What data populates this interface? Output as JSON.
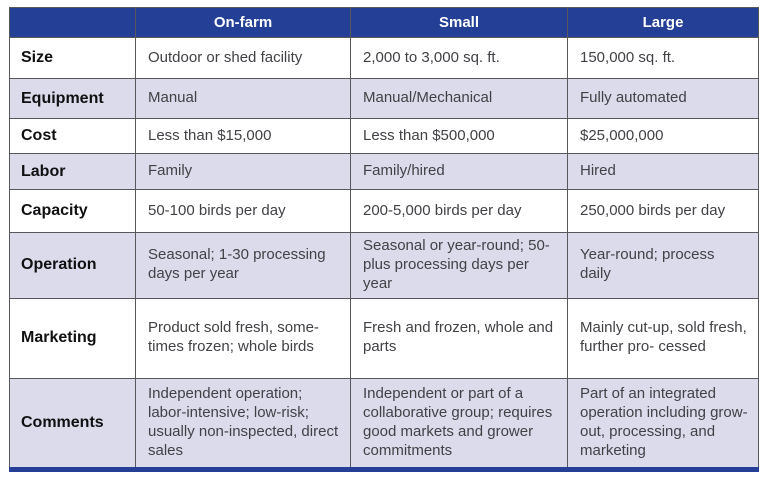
{
  "colors": {
    "header_bg": "#243f96",
    "alt_row_bg": "#dbdbeb",
    "plain_row_bg": "#ffffff",
    "grid_border": "#57575c",
    "bottom_bar": "#243f96",
    "header_text": "#ffffff",
    "body_text": "#414146",
    "label_text": "#101012"
  },
  "table": {
    "headers": [
      "",
      "On-farm",
      "Small",
      "Large"
    ],
    "rows": [
      {
        "label": "Size",
        "cells": [
          "Outdoor or shed facility",
          "2,000 to 3,000 sq. ft.",
          "150,000 sq. ft."
        ]
      },
      {
        "label": "Equipment",
        "cells": [
          "Manual",
          "Manual/Mechanical",
          "Fully automated"
        ]
      },
      {
        "label": "Cost",
        "cells": [
          "Less than $15,000",
          "Less than $500,000",
          "$25,000,000"
        ]
      },
      {
        "label": "Labor",
        "cells": [
          "Family",
          "Family/hired",
          "Hired"
        ]
      },
      {
        "label": "Capacity",
        "cells": [
          "50-100 birds per day",
          "200-5,000 birds per day",
          "250,000 birds per day"
        ]
      },
      {
        "label": "Operation",
        "cells": [
          "Seasonal; 1-30 processing days per year",
          "Seasonal or year-round; 50-plus processing days per year",
          "Year-round; process daily"
        ]
      },
      {
        "label": "Marketing",
        "cells": [
          "Product sold fresh, some-times frozen; whole birds",
          "Fresh and frozen, whole and parts",
          "Mainly cut-up, sold fresh, further pro- cessed"
        ]
      },
      {
        "label": "Comments",
        "cells": [
          "Independent operation; labor-intensive; low-risk; usually non-inspected, direct sales",
          "Independent or part of a collaborative group; requires good markets and grower commitments",
          "Part of an integrated operation including grow-out, processing, and marketing"
        ]
      }
    ]
  },
  "chart_data": {
    "type": "table",
    "title": "",
    "columns": [
      "",
      "On-farm",
      "Small",
      "Large"
    ],
    "rows": [
      [
        "Size",
        "Outdoor or shed facility",
        "2,000 to 3,000 sq. ft.",
        "150,000 sq. ft."
      ],
      [
        "Equipment",
        "Manual",
        "Manual/Mechanical",
        "Fully automated"
      ],
      [
        "Cost",
        "Less than $15,000",
        "Less than $500,000",
        "$25,000,000"
      ],
      [
        "Labor",
        "Family",
        "Family/hired",
        "Hired"
      ],
      [
        "Capacity",
        "50-100 birds per day",
        "200-5,000 birds per day",
        "250,000 birds per day"
      ],
      [
        "Operation",
        "Seasonal; 1-30 processing days per year",
        "Seasonal or year-round; 50-plus processing days per year",
        "Year-round; process daily"
      ],
      [
        "Marketing",
        "Product sold fresh, some-times frozen; whole birds",
        "Fresh and frozen, whole and parts",
        "Mainly cut-up, sold fresh, further pro- cessed"
      ],
      [
        "Comments",
        "Independent operation; labor-intensive; low-risk; usually non-inspected, direct sales",
        "Independent or part of a collaborative group; requires good markets and grower commitments",
        "Part of an integrated operation including grow-out, processing, and marketing"
      ]
    ]
  }
}
